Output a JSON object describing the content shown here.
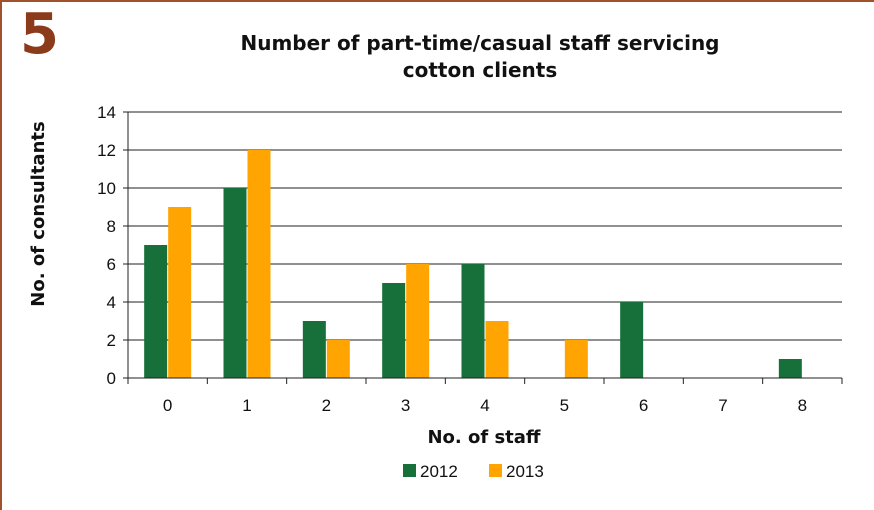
{
  "badge": "5",
  "colors": {
    "series_2012": "#17703a",
    "series_2013": "#ffa400",
    "frame": "#a0522d",
    "badge": "#8b3a1a"
  },
  "chart_data": {
    "type": "bar",
    "title": "Number of part-time/casual staff servicing cotton clients",
    "title_lines": [
      "Number of part-time/casual staff servicing",
      "cotton clients"
    ],
    "xlabel": "No. of staff",
    "ylabel": "No. of consultants",
    "categories": [
      "0",
      "1",
      "2",
      "3",
      "4",
      "5",
      "6",
      "7",
      "8"
    ],
    "series": [
      {
        "name": "2012",
        "values": [
          7,
          10,
          3,
          5,
          6,
          0,
          4,
          0,
          1
        ]
      },
      {
        "name": "2013",
        "values": [
          9,
          12,
          2,
          6,
          3,
          2,
          0,
          0,
          0
        ]
      }
    ],
    "ylim": [
      0,
      14
    ],
    "yticks": [
      0,
      2,
      4,
      6,
      8,
      10,
      12,
      14
    ],
    "grid": true,
    "legend": "bottom"
  }
}
